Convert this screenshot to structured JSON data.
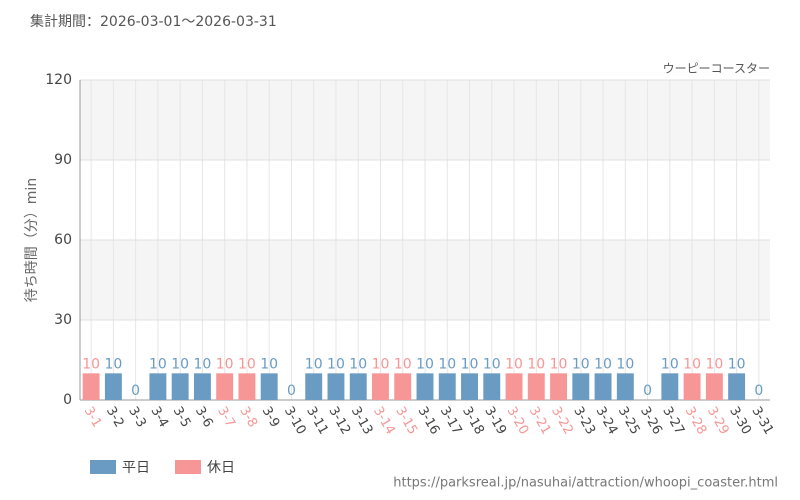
{
  "chart_data": {
    "type": "bar",
    "title": "集計期間：2026-03-01～2026-03-31",
    "subtitle": "ウーピーコースター",
    "y_label": "待ち時間（分）min",
    "source": "https://parksreal.jp/nasuhai/attraction/whoopi_coaster.html",
    "categories": [
      "3-1",
      "3-2",
      "3-3",
      "3-4",
      "3-5",
      "3-6",
      "3-7",
      "3-8",
      "3-9",
      "3-10",
      "3-11",
      "3-12",
      "3-13",
      "3-14",
      "3-15",
      "3-16",
      "3-17",
      "3-18",
      "3-19",
      "3-20",
      "3-21",
      "3-22",
      "3-23",
      "3-24",
      "3-25",
      "3-26",
      "3-27",
      "3-28",
      "3-29",
      "3-30",
      "3-31"
    ],
    "series": [
      {
        "name": "平日",
        "color": "#6a9bc3",
        "values": [
          null,
          10,
          0,
          10,
          10,
          10,
          null,
          null,
          10,
          0,
          10,
          10,
          10,
          null,
          null,
          10,
          10,
          10,
          10,
          null,
          null,
          null,
          10,
          10,
          10,
          0,
          10,
          null,
          null,
          10,
          0
        ]
      },
      {
        "name": "休日",
        "color": "#f79696",
        "values": [
          10,
          null,
          null,
          null,
          null,
          null,
          10,
          10,
          null,
          null,
          null,
          null,
          null,
          10,
          10,
          null,
          null,
          null,
          null,
          10,
          10,
          10,
          null,
          null,
          null,
          null,
          null,
          10,
          10,
          null,
          null
        ]
      }
    ],
    "ylim": [
      0,
      120
    ],
    "yticks": [
      0,
      30,
      60,
      90,
      120
    ],
    "grid": true
  }
}
